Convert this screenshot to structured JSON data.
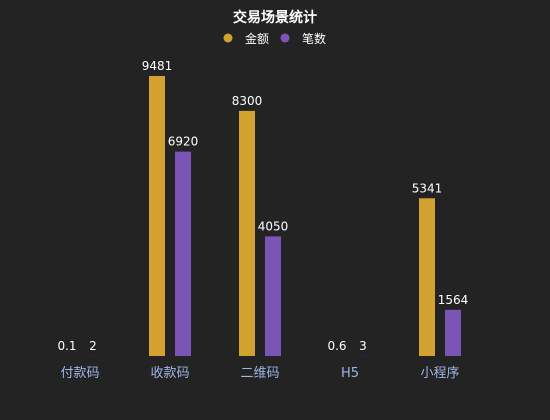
{
  "chart_data": {
    "type": "bar",
    "title": "交易场景统计",
    "categories": [
      "付款码",
      "收款码",
      "二维码",
      "H5",
      "小程序"
    ],
    "series": [
      {
        "name": "金额",
        "values": [
          0.1,
          9481,
          8300,
          0.6,
          5341
        ],
        "color": "#D2A130"
      },
      {
        "name": "笔数",
        "values": [
          2,
          6920,
          4050,
          3,
          1564
        ],
        "color": "#7B55B5"
      }
    ],
    "ylim": [
      0,
      9481
    ],
    "legend_position": "top-center",
    "grid": false,
    "show_data_labels": true,
    "text_color": "#FFFFFF",
    "category_label_color": "#9FB6E6",
    "background": "#232323"
  }
}
